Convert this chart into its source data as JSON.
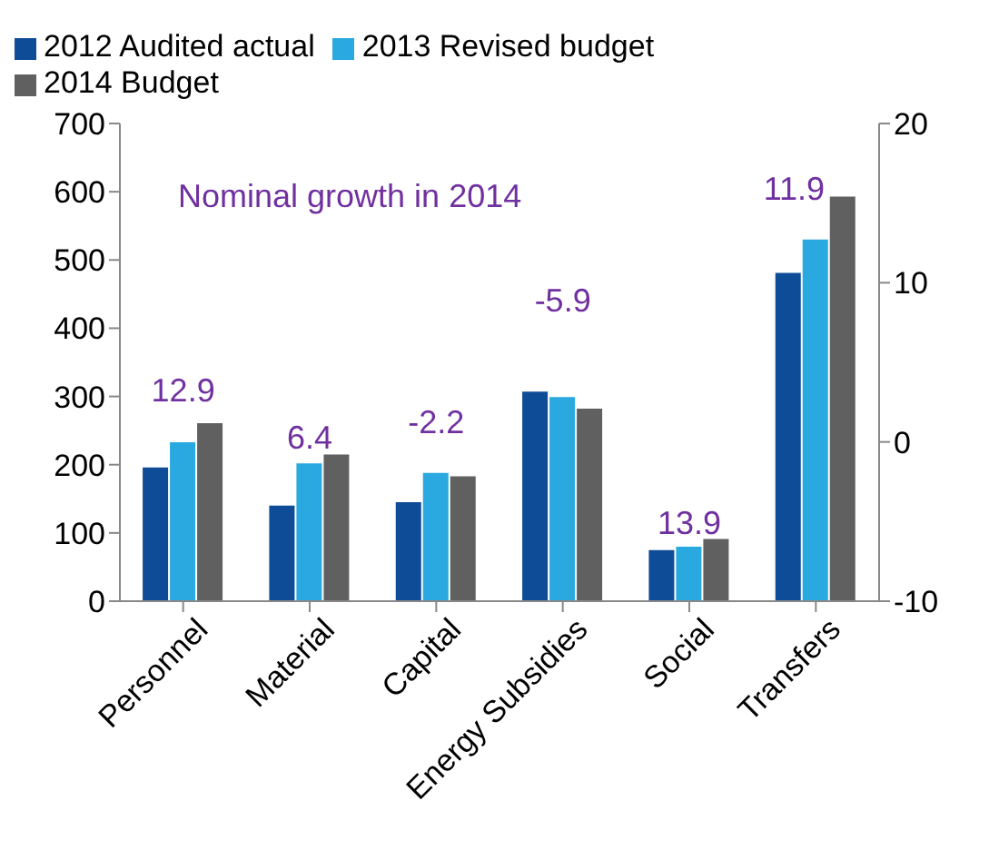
{
  "chart_data": {
    "type": "bar",
    "categories": [
      "Personnel",
      "Material",
      "Capital",
      "Energy Subsidies",
      "Social",
      "Transfers"
    ],
    "series": [
      {
        "name": "2012 Audited actual",
        "color": "#0f4c97",
        "values": [
          196,
          140,
          145,
          307,
          75,
          481
        ]
      },
      {
        "name": "2013 Revised budget",
        "color": "#29a9e0",
        "values": [
          233,
          202,
          188,
          299,
          80,
          530
        ]
      },
      {
        "name": "2014 Budget",
        "color": "#606060",
        "values": [
          261,
          215,
          183,
          282,
          91,
          593
        ]
      }
    ],
    "ylim": [
      0,
      700
    ],
    "yticks": [
      0,
      100,
      200,
      300,
      400,
      500,
      600,
      700
    ],
    "y2lim": [
      -10,
      20
    ],
    "y2ticks": [
      -10,
      0,
      10,
      20
    ],
    "legend": "top",
    "grid": false,
    "annotations": [
      "Nominal growth in 2014",
      "12.9",
      "6.4",
      "-2.2",
      "-5.9",
      "13.9",
      "11.9"
    ]
  }
}
